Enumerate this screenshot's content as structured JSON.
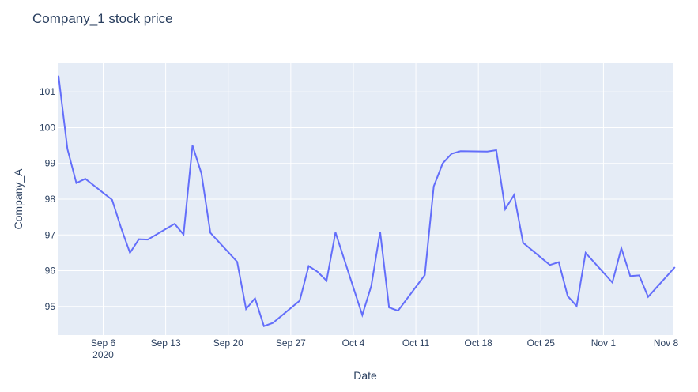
{
  "chart_data": {
    "type": "line",
    "title": "Company_1 stock price",
    "xlabel": "Date",
    "ylabel": "Company_A",
    "x_ticks": [
      {
        "date": "2020-09-06",
        "label": "Sep 6",
        "sublabel": "2020"
      },
      {
        "date": "2020-09-13",
        "label": "Sep 13"
      },
      {
        "date": "2020-09-20",
        "label": "Sep 20"
      },
      {
        "date": "2020-09-27",
        "label": "Sep 27"
      },
      {
        "date": "2020-10-04",
        "label": "Oct 4"
      },
      {
        "date": "2020-10-11",
        "label": "Oct 11"
      },
      {
        "date": "2020-10-18",
        "label": "Oct 18"
      },
      {
        "date": "2020-10-25",
        "label": "Oct 25"
      },
      {
        "date": "2020-11-01",
        "label": "Nov 1"
      },
      {
        "date": "2020-11-08",
        "label": "Nov 8"
      }
    ],
    "y_ticks": [
      95,
      96,
      97,
      98,
      99,
      100,
      101
    ],
    "xlim": [
      "2020-09-01",
      "2020-11-08 18:00"
    ],
    "ylim": [
      94.2,
      101.8
    ],
    "grid": true,
    "line_color": "#636efa",
    "plot_bg": "#e5ecf6",
    "series": [
      {
        "x": [
          "2020-09-01",
          "2020-09-02",
          "2020-09-03",
          "2020-09-04",
          "2020-09-07",
          "2020-09-08",
          "2020-09-09",
          "2020-09-10",
          "2020-09-11",
          "2020-09-14",
          "2020-09-15",
          "2020-09-16",
          "2020-09-17",
          "2020-09-18",
          "2020-09-21",
          "2020-09-22",
          "2020-09-23",
          "2020-09-24",
          "2020-09-25",
          "2020-09-28",
          "2020-09-29",
          "2020-09-30",
          "2020-10-01",
          "2020-10-02",
          "2020-10-05",
          "2020-10-06",
          "2020-10-07",
          "2020-10-08",
          "2020-10-09",
          "2020-10-12",
          "2020-10-13",
          "2020-10-14",
          "2020-10-15",
          "2020-10-16",
          "2020-10-19",
          "2020-10-20",
          "2020-10-21",
          "2020-10-22",
          "2020-10-23",
          "2020-10-26",
          "2020-10-27",
          "2020-10-28",
          "2020-10-29",
          "2020-10-30",
          "2020-11-02",
          "2020-11-03",
          "2020-11-04",
          "2020-11-05",
          "2020-11-06",
          "2020-11-09"
        ],
        "y": [
          101.45,
          99.4,
          98.45,
          98.57,
          97.98,
          97.2,
          96.5,
          96.88,
          96.87,
          97.31,
          97.01,
          99.5,
          98.72,
          97.06,
          96.25,
          94.93,
          95.23,
          94.45,
          94.54,
          95.16,
          96.13,
          95.97,
          95.72,
          97.07,
          94.76,
          95.57,
          97.09,
          94.97,
          94.88,
          95.88,
          98.36,
          99.0,
          99.27,
          99.34,
          99.33,
          99.37,
          97.72,
          98.12,
          96.78,
          96.16,
          96.24,
          95.29,
          95.01,
          96.5,
          95.67,
          96.63,
          95.85,
          95.87,
          95.27,
          96.1
        ]
      }
    ]
  }
}
